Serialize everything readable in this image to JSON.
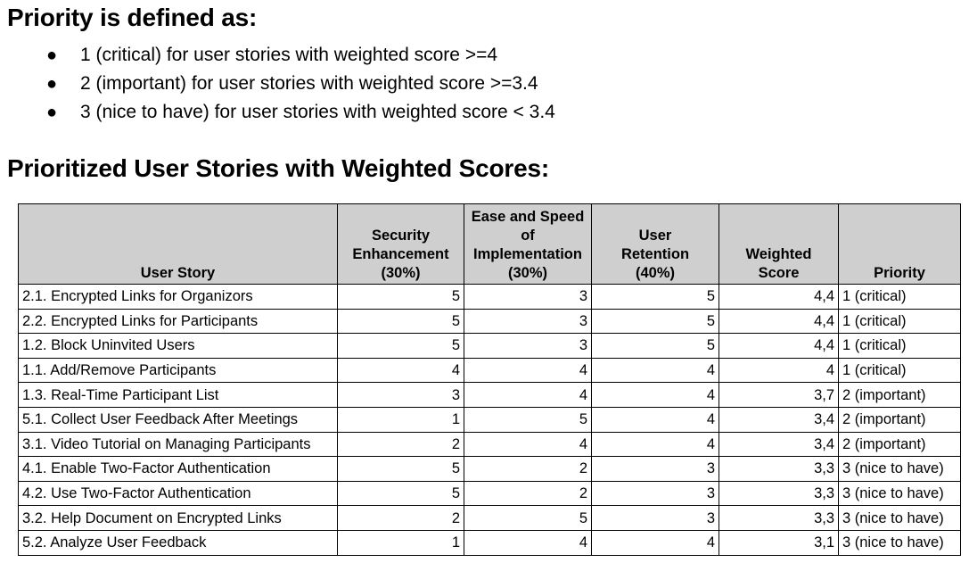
{
  "priority_section": {
    "title": "Priority is defined as:",
    "bullets": [
      "1 (critical) for user stories with weighted score >=4",
      "2 (important) for user stories with weighted score >=3.4",
      "3 (nice to have) for user stories with weighted score < 3.4"
    ]
  },
  "table_section": {
    "title": "Prioritized User Stories with Weighted Scores:"
  },
  "table": {
    "headers": {
      "user_story": "User Story",
      "security": [
        "Security",
        "Enhancement",
        "(30%)"
      ],
      "ease": [
        "Ease and Speed",
        "of",
        "Implementation",
        "(30%)"
      ],
      "retention": [
        "User",
        "Retention",
        "(40%)"
      ],
      "weighted": [
        "Weighted",
        "Score"
      ],
      "priority": "Priority"
    },
    "rows": [
      {
        "story": "2.1. Encrypted Links for Organizors",
        "security": "5",
        "ease": "3",
        "retention": "5",
        "score": "4,4",
        "priority": "1 (critical)"
      },
      {
        "story": "2.2. Encrypted Links for Participants",
        "security": "5",
        "ease": "3",
        "retention": "5",
        "score": "4,4",
        "priority": "1 (critical)"
      },
      {
        "story": "1.2. Block Uninvited Users",
        "security": "5",
        "ease": "3",
        "retention": "5",
        "score": "4,4",
        "priority": "1 (critical)"
      },
      {
        "story": "1.1. Add/Remove Participants",
        "security": "4",
        "ease": "4",
        "retention": "4",
        "score": "4",
        "priority": "1 (critical)"
      },
      {
        "story": "1.3. Real-Time Participant List",
        "security": "3",
        "ease": "4",
        "retention": "4",
        "score": "3,7",
        "priority": "2 (important)"
      },
      {
        "story": "5.1. Collect User Feedback After Meetings",
        "security": "1",
        "ease": "5",
        "retention": "4",
        "score": "3,4",
        "priority": "2 (important)"
      },
      {
        "story": "3.1. Video Tutorial on Managing Participants",
        "security": "2",
        "ease": "4",
        "retention": "4",
        "score": "3,4",
        "priority": "2 (important)"
      },
      {
        "story": "4.1. Enable Two-Factor Authentication",
        "security": "5",
        "ease": "2",
        "retention": "3",
        "score": "3,3",
        "priority": "3 (nice to have)"
      },
      {
        "story": "4.2. Use Two-Factor Authentication",
        "security": "5",
        "ease": "2",
        "retention": "3",
        "score": "3,3",
        "priority": "3 (nice to have)"
      },
      {
        "story": "3.2. Help Document on Encrypted Links",
        "security": "2",
        "ease": "5",
        "retention": "3",
        "score": "3,3",
        "priority": "3 (nice to have)"
      },
      {
        "story": "5.2. Analyze User Feedback",
        "security": "1",
        "ease": "4",
        "retention": "4",
        "score": "3,1",
        "priority": "3 (nice to have)"
      }
    ]
  },
  "colors": {
    "header_background": "#cfcfcf",
    "border": "#000000"
  }
}
